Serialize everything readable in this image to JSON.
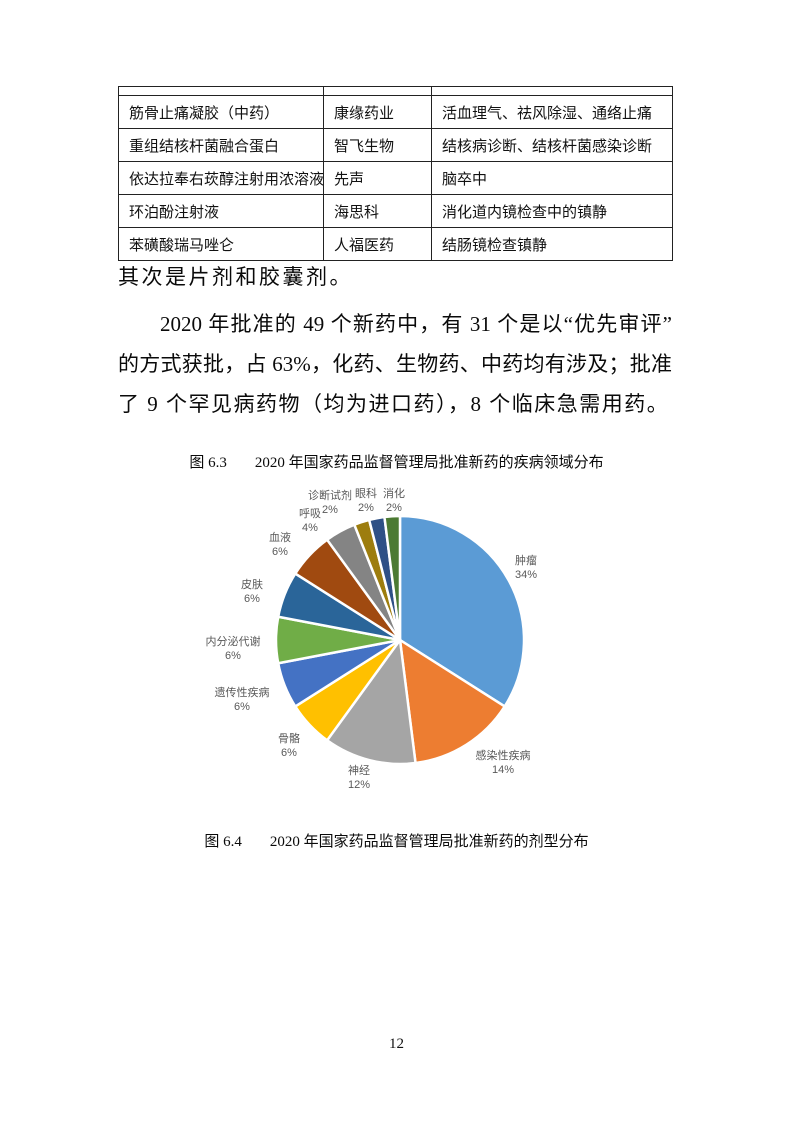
{
  "page": {
    "number": "12"
  },
  "table": {
    "rows": [
      [
        "筋骨止痛凝胶（中药）",
        "康缘药业",
        "活血理气、祛风除湿、通络止痛"
      ],
      [
        "重组结核杆菌融合蛋白",
        "智飞生物",
        "结核病诊断、结核杆菌感染诊断"
      ],
      [
        "依达拉奉右莰醇注射用浓溶液",
        "先声",
        "脑卒中"
      ],
      [
        "环泊酚注射液",
        "海思科",
        "消化道内镜检查中的镇静"
      ],
      [
        "苯磺酸瑞马唑仑",
        "人福医药",
        "结肠镜检查镇静"
      ]
    ]
  },
  "paragraphs": {
    "p1": "其次是片剂和胶囊剂。",
    "p2_lines": [
      "2020 年批准的 49 个新药中，有 31 个是以“优先审评”",
      "的方式获批，占 63%，化药、生物药、中药均有涉及；批准",
      "了 9 个罕见病药物（均为进口药），8 个临床急需用药。"
    ]
  },
  "figure63": {
    "label": "图 6.3",
    "title": "2020 年国家药品监督管理局批准新药的疾病领域分布"
  },
  "figure64": {
    "label": "图 6.4",
    "title": "2020 年国家药品监督管理局批准新药的剂型分布"
  },
  "chart_data": {
    "type": "pie",
    "title": "2020 年国家药品监督管理局批准新药的疾病领域分布",
    "start_angle_deg": 0,
    "direction": "clockwise",
    "legend_position": "none",
    "label_color": "#595959",
    "slices": [
      {
        "label": "肿瘤",
        "pct": 34,
        "pct_label": "34%",
        "color": "#5B9BD5"
      },
      {
        "label": "感染性疾病",
        "pct": 14,
        "pct_label": "14%",
        "color": "#ED7D31"
      },
      {
        "label": "神经",
        "pct": 12,
        "pct_label": "12%",
        "color": "#A5A5A5"
      },
      {
        "label": "骨骼",
        "pct": 6,
        "pct_label": "6%",
        "color": "#FFC000"
      },
      {
        "label": "遗传性疾病",
        "pct": 6,
        "pct_label": "6%",
        "color": "#4472C4"
      },
      {
        "label": "内分泌代谢",
        "pct": 6,
        "pct_label": "6%",
        "color": "#70AD47"
      },
      {
        "label": "皮肤",
        "pct": 6,
        "pct_label": "6%",
        "color": "#2A6599"
      },
      {
        "label": "血液",
        "pct": 6,
        "pct_label": "6%",
        "color": "#A04A10"
      },
      {
        "label": "呼吸",
        "pct": 4,
        "pct_label": "4%",
        "color": "#848484"
      },
      {
        "label": "诊断试剂",
        "pct": 2,
        "pct_label": "2%",
        "color": "#9D7D0E"
      },
      {
        "label": "眼科",
        "pct": 2,
        "pct_label": "2%",
        "color": "#2E5086"
      },
      {
        "label": "消化",
        "pct": 2,
        "pct_label": "2%",
        "color": "#4C7A33"
      }
    ]
  }
}
